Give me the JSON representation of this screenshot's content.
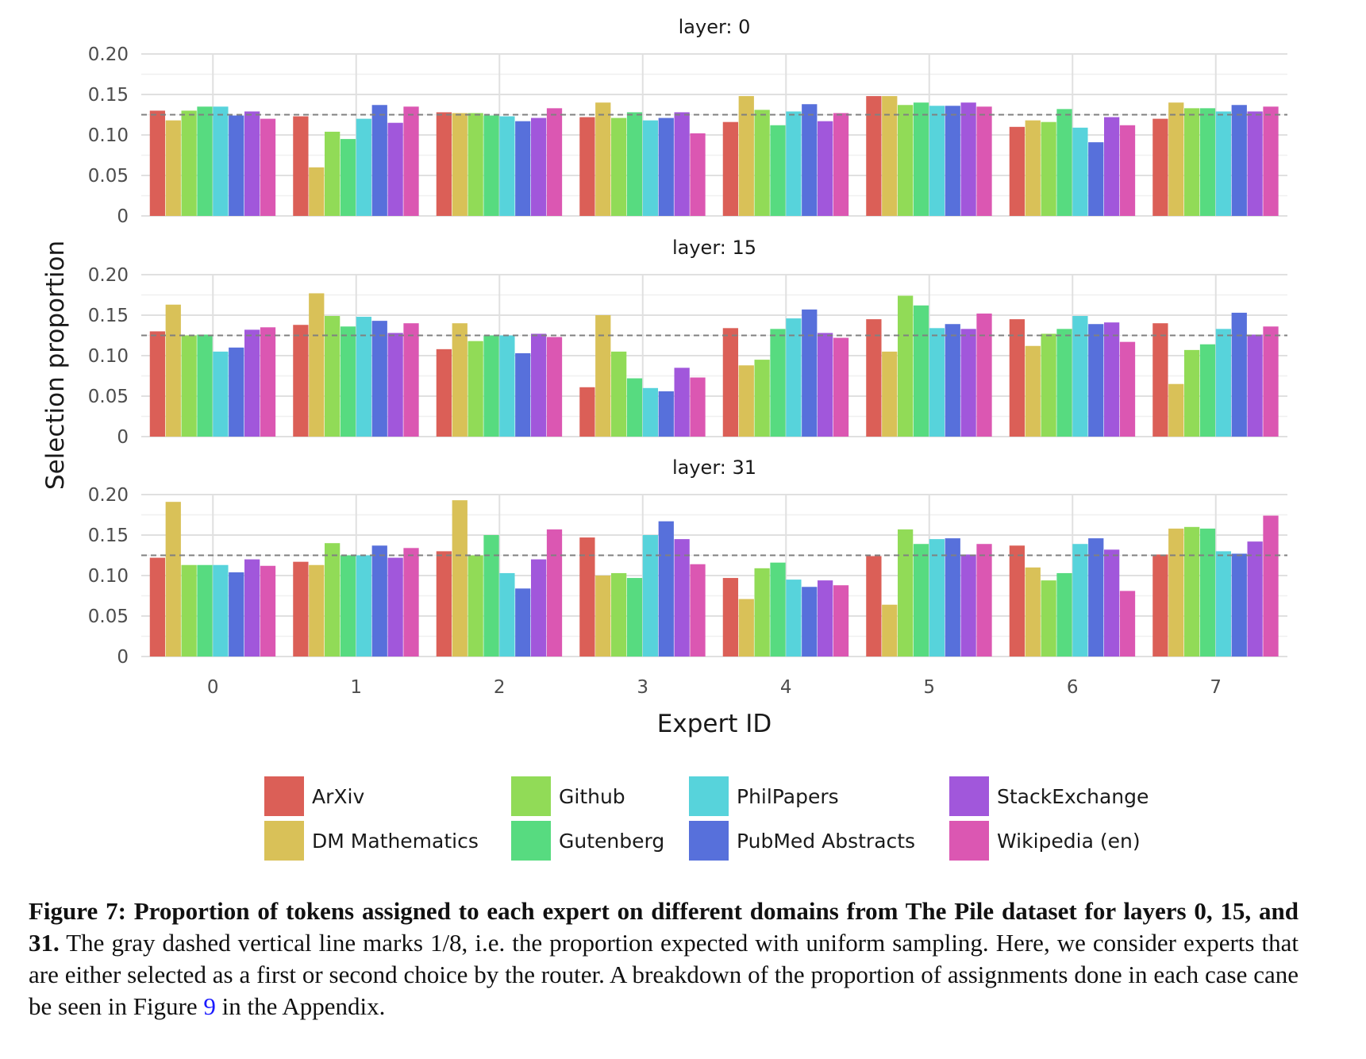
{
  "chart_data": {
    "type": "bar",
    "ylabel": "Selection proportion",
    "xlabel": "Expert ID",
    "categories": [
      "0",
      "1",
      "2",
      "3",
      "4",
      "5",
      "6",
      "7"
    ],
    "ylim": [
      0,
      0.2
    ],
    "yticks": [
      0,
      0.05,
      0.1,
      0.15,
      0.2
    ],
    "ytick_labels": [
      "0",
      "0.05",
      "0.10",
      "0.15",
      "0.20"
    ],
    "reference_line": 0.125,
    "grid": true,
    "legend_position": "bottom",
    "series_colors": [
      "#db5f57",
      "#d9c158",
      "#91db57",
      "#57db80",
      "#57d3db",
      "#5770db",
      "#a157db",
      "#db57b2"
    ],
    "series_names": [
      "ArXiv",
      "DM Mathematics",
      "Github",
      "Gutenberg",
      "PhilPapers",
      "PubMed Abstracts",
      "StackExchange",
      "Wikipedia (en)"
    ],
    "panels": [
      {
        "title": "layer: 0",
        "values": [
          [
            0.13,
            0.118,
            0.13,
            0.135,
            0.135,
            0.124,
            0.129,
            0.12
          ],
          [
            0.123,
            0.06,
            0.104,
            0.095,
            0.12,
            0.137,
            0.115,
            0.135
          ],
          [
            0.128,
            0.127,
            0.127,
            0.124,
            0.123,
            0.117,
            0.121,
            0.133
          ],
          [
            0.122,
            0.14,
            0.121,
            0.128,
            0.118,
            0.121,
            0.128,
            0.102
          ],
          [
            0.116,
            0.148,
            0.131,
            0.112,
            0.129,
            0.138,
            0.117,
            0.127
          ],
          [
            0.148,
            0.148,
            0.137,
            0.14,
            0.136,
            0.136,
            0.14,
            0.135
          ],
          [
            0.11,
            0.118,
            0.116,
            0.132,
            0.109,
            0.091,
            0.122,
            0.112
          ],
          [
            0.12,
            0.14,
            0.133,
            0.133,
            0.129,
            0.137,
            0.129,
            0.135
          ]
        ]
      },
      {
        "title": "layer: 15",
        "values": [
          [
            0.13,
            0.163,
            0.125,
            0.126,
            0.105,
            0.11,
            0.132,
            0.135
          ],
          [
            0.138,
            0.177,
            0.149,
            0.136,
            0.148,
            0.143,
            0.128,
            0.14
          ],
          [
            0.108,
            0.14,
            0.118,
            0.125,
            0.125,
            0.103,
            0.127,
            0.123
          ],
          [
            0.061,
            0.15,
            0.105,
            0.072,
            0.06,
            0.056,
            0.085,
            0.073
          ],
          [
            0.134,
            0.088,
            0.095,
            0.133,
            0.146,
            0.157,
            0.128,
            0.122
          ],
          [
            0.145,
            0.105,
            0.174,
            0.162,
            0.134,
            0.139,
            0.133,
            0.152
          ],
          [
            0.145,
            0.112,
            0.127,
            0.133,
            0.149,
            0.139,
            0.141,
            0.117
          ],
          [
            0.14,
            0.065,
            0.107,
            0.114,
            0.133,
            0.153,
            0.126,
            0.136
          ]
        ]
      },
      {
        "title": "layer: 31",
        "values": [
          [
            0.122,
            0.191,
            0.113,
            0.113,
            0.113,
            0.104,
            0.12,
            0.112
          ],
          [
            0.117,
            0.113,
            0.14,
            0.125,
            0.125,
            0.137,
            0.122,
            0.134
          ],
          [
            0.13,
            0.193,
            0.125,
            0.15,
            0.103,
            0.084,
            0.12,
            0.157
          ],
          [
            0.147,
            0.1,
            0.103,
            0.097,
            0.15,
            0.167,
            0.145,
            0.114
          ],
          [
            0.097,
            0.071,
            0.109,
            0.116,
            0.095,
            0.086,
            0.094,
            0.088
          ],
          [
            0.124,
            0.064,
            0.157,
            0.139,
            0.145,
            0.146,
            0.126,
            0.139
          ],
          [
            0.137,
            0.11,
            0.094,
            0.103,
            0.139,
            0.146,
            0.132,
            0.081
          ],
          [
            0.126,
            0.158,
            0.16,
            0.158,
            0.13,
            0.127,
            0.142,
            0.174
          ]
        ]
      }
    ]
  },
  "caption": {
    "bold": "Figure 7: Proportion of tokens assigned to each expert on different domains from The Pile dataset for layers 0, 15, and 31.",
    "text1": " The gray dashed vertical line marks 1/8, i.e. the proportion expected with uniform sampling. Here, we consider experts that are either selected as a first or second choice by the router. A breakdown of the proportion of assignments done in each case cane be seen in Figure ",
    "ref": "9",
    "text2": " in the Appendix."
  }
}
